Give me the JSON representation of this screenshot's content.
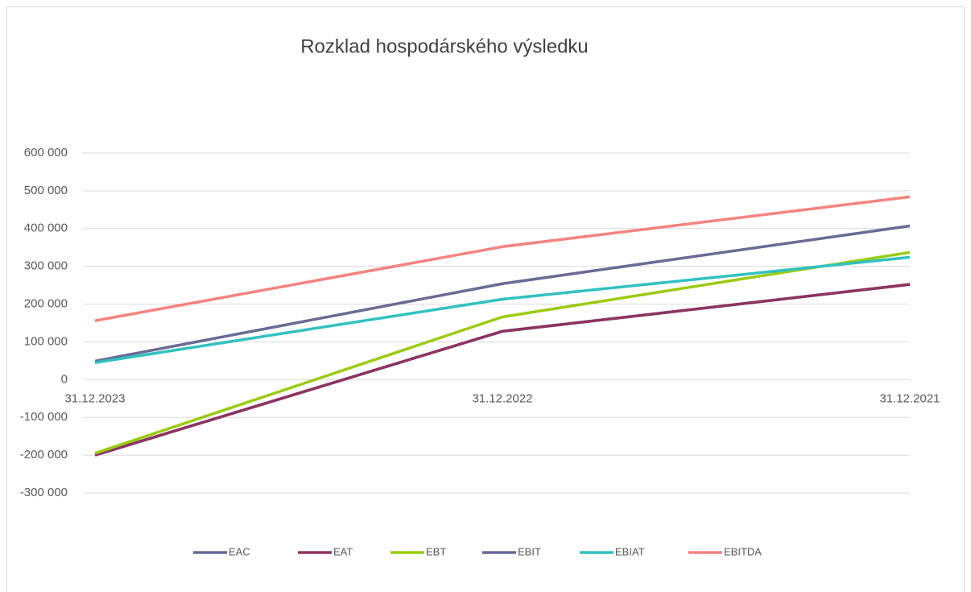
{
  "chart_data": {
    "type": "line",
    "title": "Rozklad hospodárského výsledku",
    "categories": [
      "31.12.2023",
      "31.12.2022",
      "31.12.2021"
    ],
    "series": [
      {
        "name": "EAC",
        "color": "#6a6a96",
        "values": [
          -200000,
          128000,
          252000
        ]
      },
      {
        "name": "EAT",
        "color": "#8e3362",
        "values": [
          -200000,
          128000,
          252000
        ]
      },
      {
        "name": "EBT",
        "color": "#9acb0f",
        "values": [
          -195000,
          166000,
          337000
        ]
      },
      {
        "name": "EBIT",
        "color": "#6a6a96",
        "values": [
          49000,
          254000,
          407000
        ]
      },
      {
        "name": "EBIAT",
        "color": "#31c1c0",
        "values": [
          45000,
          213000,
          324000
        ]
      },
      {
        "name": "EBITDA",
        "color": "#f4837f",
        "values": [
          156000,
          352000,
          484000
        ]
      }
    ],
    "ylim": [
      -300000,
      600000
    ],
    "yticks": [
      {
        "value": -300000,
        "label": "-300 000"
      },
      {
        "value": -200000,
        "label": "-200 000"
      },
      {
        "value": -100000,
        "label": "-100 000"
      },
      0,
      {
        "value": 100000,
        "label": "100 000"
      },
      {
        "value": 200000,
        "label": "200 000"
      },
      {
        "value": 300000,
        "label": "300 000"
      },
      {
        "value": 400000,
        "label": "400 000"
      },
      {
        "value": 500000,
        "label": "500 000"
      },
      {
        "value": 600000,
        "label": "600 000"
      }
    ],
    "grid": true,
    "legend": "bottom"
  }
}
